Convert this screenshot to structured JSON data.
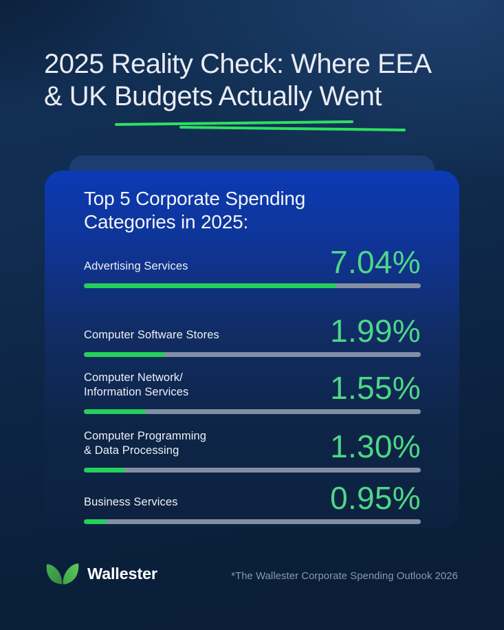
{
  "header": {
    "title_line1": "2025 Reality Check: Where EEA",
    "title_line2": "& UK Budgets Actually Went"
  },
  "card": {
    "heading_line1": "Top 5 Corporate Spending",
    "heading_line2": "Categories in 2025:",
    "rows": [
      {
        "label": "Advertising Services",
        "label2": "",
        "value": "7.04%",
        "fill_pct": 74.9
      },
      {
        "label": "Computer Software Stores",
        "label2": "",
        "value": "1.99%",
        "fill_pct": 24.0
      },
      {
        "label": "Computer Network/",
        "label2": "Information Services",
        "value": "1.55%",
        "fill_pct": 18.3
      },
      {
        "label": "Computer Programming",
        "label2": "& Data Processing",
        "value": "1.30%",
        "fill_pct": 12.2
      },
      {
        "label": "Business Services",
        "label2": "",
        "value": "0.95%",
        "fill_pct": 6.7
      }
    ]
  },
  "footer": {
    "brand": "Wallester",
    "note": "*The Wallester Corporate Spending Outlook 2026"
  },
  "colors": {
    "accent_green_text": "#4dd787",
    "bar_fill_green": "#23d05a",
    "bar_track_gray": "#8390a4",
    "underline_green": "#2ee061",
    "card_blue_top": "#0c3ab4",
    "card_blue_bottom": "#0d2240",
    "background_navy": "#0c2440",
    "logo_green_dark": "#3ea04b",
    "logo_green_light": "#54c052"
  },
  "chart_data": {
    "type": "bar",
    "title": "Top 5 Corporate Spending Categories in 2025:",
    "categories": [
      "Advertising Services",
      "Computer Software Stores",
      "Computer Network/Information Services",
      "Computer Programming & Data Processing",
      "Business Services"
    ],
    "values": [
      7.04,
      1.99,
      1.55,
      1.3,
      0.95
    ],
    "unit": "%",
    "orientation": "horizontal",
    "value_labels_shown": true,
    "grid": false,
    "legend": false
  }
}
